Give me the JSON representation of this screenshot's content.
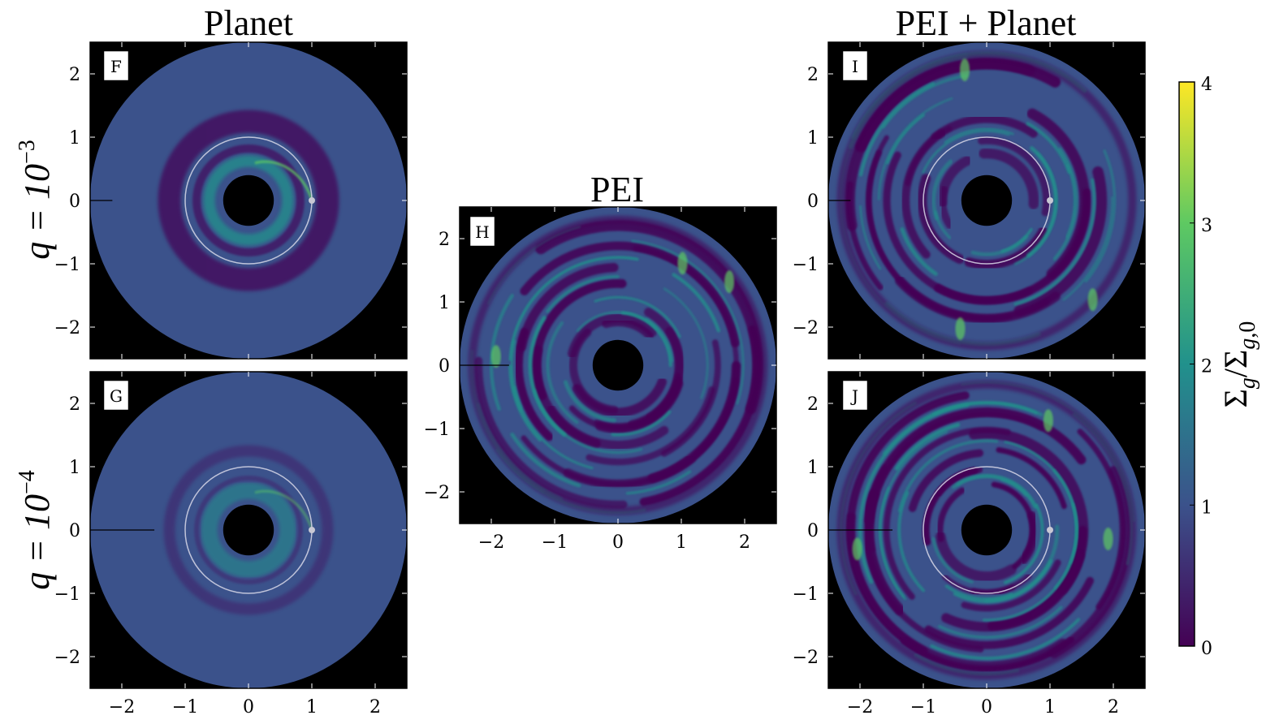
{
  "chart_data": {
    "type": "heatmap",
    "column_titles": [
      "Planet",
      "PEI",
      "PEI + Planet"
    ],
    "row_labels": [
      {
        "base": "q = 10",
        "exponent": "−3"
      },
      {
        "base": "q = 10",
        "exponent": "−4"
      }
    ],
    "xlim": [
      -2.5,
      2.5
    ],
    "ylim": [
      -2.5,
      2.5
    ],
    "x_ticks": [
      -2,
      -1,
      0,
      1,
      2
    ],
    "y_ticks": [
      -2,
      -1,
      0,
      1,
      2
    ],
    "x_tick_labels": [
      "−2",
      "−1",
      "0",
      "1",
      "2"
    ],
    "y_tick_labels": [
      "−2",
      "−1",
      "0",
      "1",
      "2"
    ],
    "colorbar": {
      "label": "Σg/Σg,0",
      "min": 0,
      "max": 4,
      "ticks": [
        0,
        1,
        2,
        3,
        4
      ],
      "tick_labels": [
        "0",
        "1",
        "2",
        "3",
        "4"
      ],
      "colormap": "viridis",
      "colors": [
        "#440154",
        "#3b528b",
        "#21918c",
        "#5ec962",
        "#fde725"
      ]
    },
    "disk": {
      "inner_radius": 0.4,
      "outer_radius": 2.5,
      "background": "#000000",
      "base_color": "#3b528b"
    },
    "panels": [
      {
        "id": "F",
        "column": "Planet",
        "row": 0,
        "planet_orbit_radius": 1,
        "planet_position": [
          1,
          0
        ],
        "feature": "planet_spiral"
      },
      {
        "id": "G",
        "column": "Planet",
        "row": 1,
        "planet_orbit_radius": 1,
        "planet_position": [
          1,
          0
        ],
        "feature": "planet_spiral_weak"
      },
      {
        "id": "H",
        "column": "PEI",
        "row": null,
        "planet_orbit_radius": null,
        "planet_position": null,
        "feature": "pei_rings"
      },
      {
        "id": "I",
        "column": "PEI + Planet",
        "row": 0,
        "planet_orbit_radius": 1,
        "planet_position": [
          1,
          0
        ],
        "feature": "pei_rings_planet"
      },
      {
        "id": "J",
        "column": "PEI + Planet",
        "row": 1,
        "planet_orbit_radius": 1,
        "planet_position": [
          1,
          0
        ],
        "feature": "pei_rings_planet"
      }
    ]
  }
}
